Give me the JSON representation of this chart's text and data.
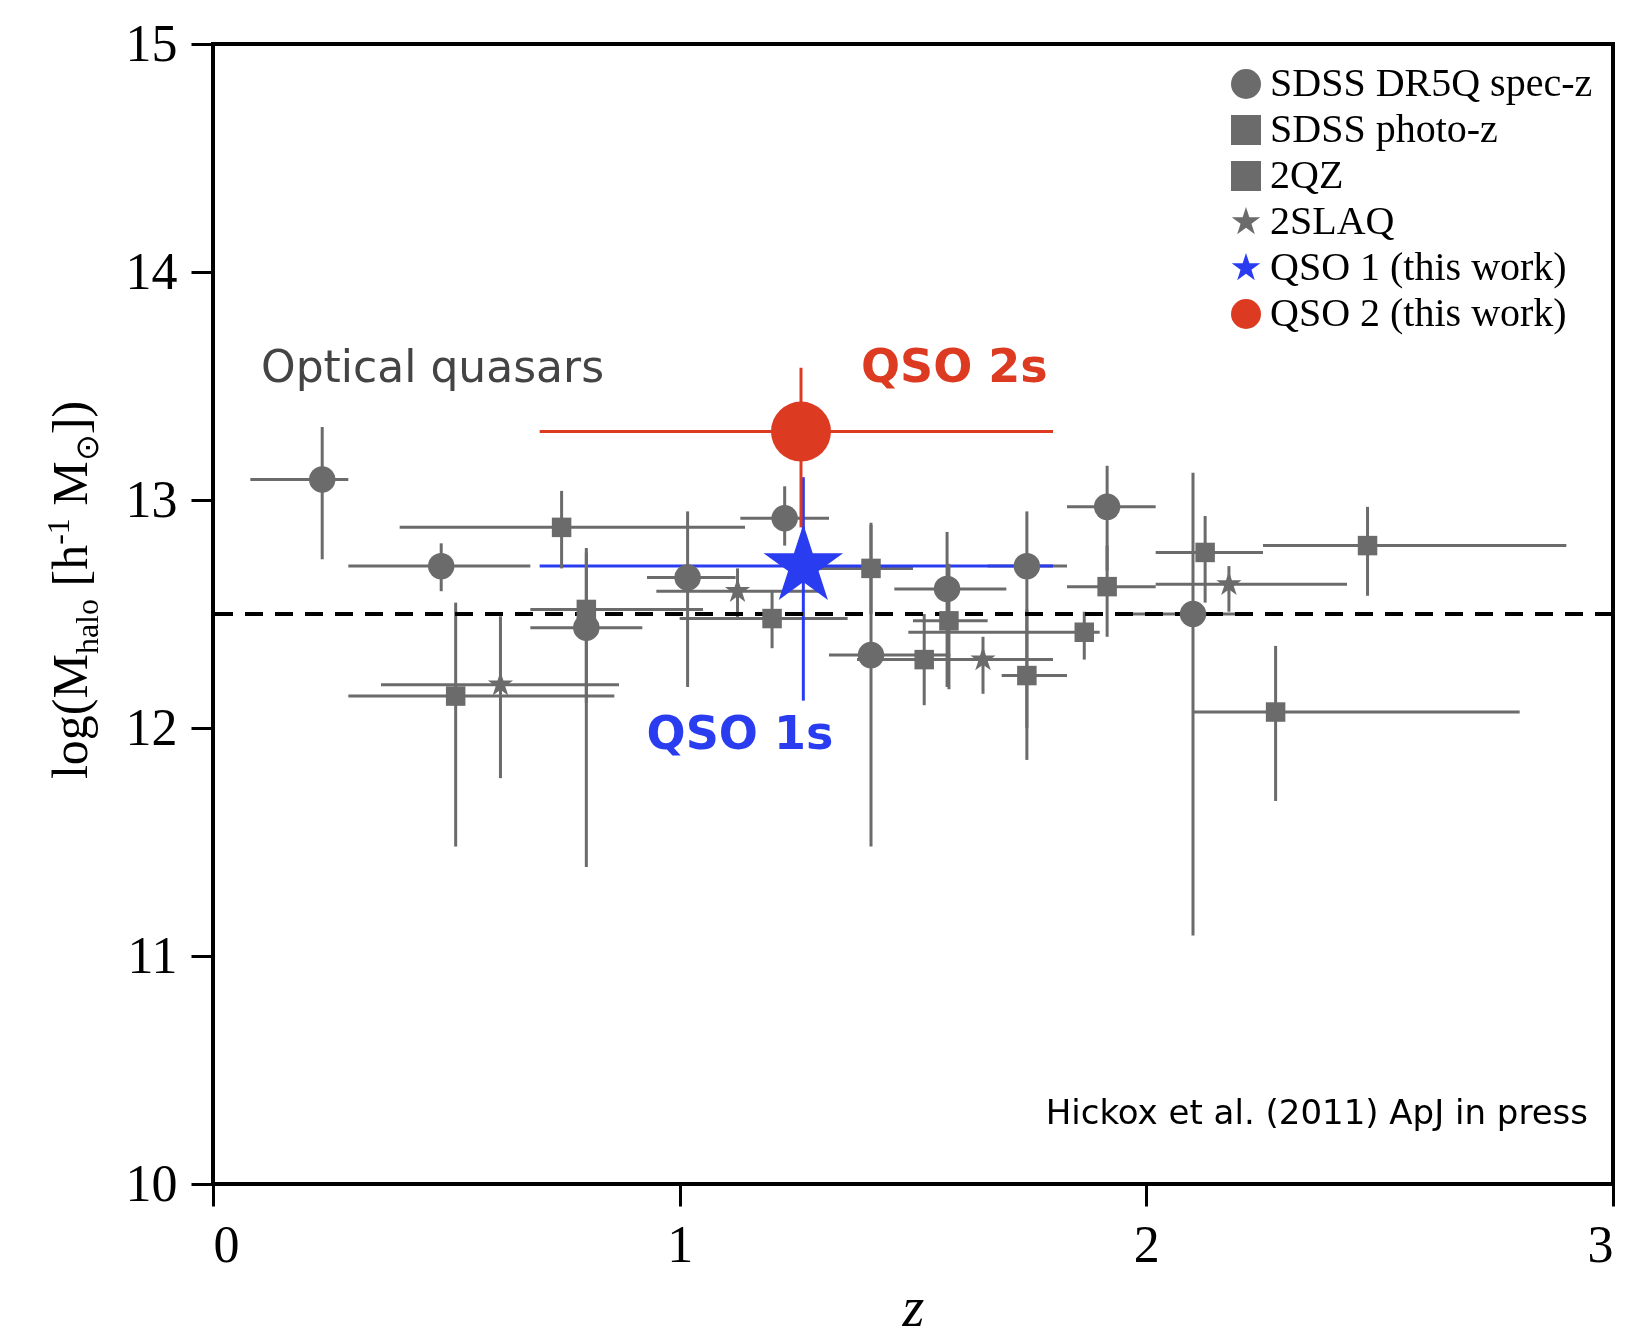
{
  "chart_data": {
    "type": "scatter",
    "xlabel": "z",
    "ylabel": "log(M$_{halo}$ [h$^{-1}$ M$_{⊙}$])",
    "xlim": [
      0,
      3
    ],
    "ylim": [
      10,
      15
    ],
    "xticks": [
      0,
      1,
      2,
      3
    ],
    "yticks": [
      10,
      11,
      12,
      13,
      14,
      15
    ],
    "grid": false,
    "legend": "top right",
    "series": [
      {
        "name": "SDSS DR5Q spec-z",
        "color": "#6b6b6b",
        "marker": "circle",
        "x": [
          0.234,
          0.489,
          0.8,
          1.017,
          1.225,
          1.41,
          1.573,
          1.744,
          1.916,
          2.1
        ],
        "values": [
          13.09,
          12.71,
          12.44,
          12.66,
          12.92,
          12.32,
          12.61,
          12.71,
          12.97,
          12.5
        ],
        "xerrors": [
          [
            0.08,
            0.29
          ],
          [
            0.29,
            0.68
          ],
          [
            0.68,
            0.92
          ],
          [
            0.93,
            1.12
          ],
          [
            1.13,
            1.32
          ],
          [
            1.32,
            1.58
          ],
          [
            1.46,
            1.7
          ],
          [
            1.66,
            1.83
          ],
          [
            1.83,
            2.02
          ],
          [
            1.96,
            2.2
          ]
        ],
        "errors": [
          [
            12.74,
            13.32
          ],
          [
            12.6,
            12.81
          ],
          [
            11.39,
            12.79
          ],
          [
            12.18,
            12.95
          ],
          [
            12.8,
            13.06
          ],
          [
            11.48,
            12.9
          ],
          [
            12.18,
            12.86
          ],
          [
            11.86,
            12.95
          ],
          [
            12.69,
            13.15
          ],
          [
            11.09,
            13.12
          ]
        ]
      },
      {
        "name": "SDSS photo-z",
        "color": "#6b6b6b",
        "marker": "square",
        "x": [
          0.747,
          1.198,
          1.524,
          1.867,
          2.277
        ],
        "values": [
          12.88,
          12.48,
          12.3,
          12.42,
          12.07
        ],
        "xerrors": [
          [
            0.4,
            1.14
          ],
          [
            1.0,
            1.36
          ],
          [
            1.38,
            1.68
          ],
          [
            1.49,
            1.9
          ],
          [
            2.1,
            2.8
          ]
        ],
        "errors": [
          [
            12.7,
            13.04
          ],
          [
            12.35,
            12.6
          ],
          [
            12.1,
            12.5
          ],
          [
            12.3,
            12.51
          ],
          [
            11.68,
            12.36
          ]
        ]
      },
      {
        "name": "2QZ",
        "color": "#6b6b6b",
        "marker": "square",
        "x": [
          0.52,
          0.8,
          1.41,
          1.577,
          1.744,
          1.916,
          2.126,
          2.474
        ],
        "values": [
          12.14,
          12.52,
          12.7,
          12.47,
          12.23,
          12.62,
          12.77,
          12.8
        ],
        "xerrors": [
          [
            0.29,
            0.86
          ],
          [
            0.68,
            1.05
          ],
          [
            1.3,
            1.5
          ],
          [
            1.5,
            1.66
          ],
          [
            1.69,
            1.83
          ],
          [
            1.83,
            2.02
          ],
          [
            2.02,
            2.25
          ],
          [
            2.25,
            2.9
          ]
        ],
        "errors": [
          [
            11.48,
            12.55
          ],
          [
            12.11,
            12.77
          ],
          [
            12.5,
            12.89
          ],
          [
            12.17,
            12.72
          ],
          [
            12.0,
            12.52
          ],
          [
            12.4,
            12.8
          ],
          [
            12.55,
            12.93
          ],
          [
            12.58,
            12.97
          ]
        ]
      },
      {
        "name": "2SLAQ",
        "color": "#6b6b6b",
        "marker": "star",
        "x": [
          0.616,
          1.124,
          1.65,
          2.177
        ],
        "values": [
          12.19,
          12.6,
          12.3,
          12.63
        ],
        "xerrors": [
          [
            0.36,
            0.87
          ],
          [
            0.95,
            1.3
          ],
          [
            1.5,
            1.8
          ],
          [
            2.02,
            2.43
          ]
        ],
        "errors": [
          [
            11.78,
            12.49
          ],
          [
            12.48,
            12.7
          ],
          [
            12.15,
            12.4
          ],
          [
            12.51,
            12.71
          ]
        ]
      },
      {
        "name": "QSO 1 (this work)",
        "color": "#2a3cf0",
        "marker": "star",
        "x": [
          1.265
        ],
        "values": [
          12.71
        ],
        "xerrors": [
          [
            0.7,
            1.8
          ]
        ],
        "errors": [
          [
            12.12,
            13.1
          ]
        ]
      },
      {
        "name": "QSO 2 (this work)",
        "color": "#dd3a22",
        "marker": "circle",
        "x": [
          1.26
        ],
        "values": [
          13.3
        ],
        "xerrors": [
          [
            0.7,
            1.8
          ]
        ],
        "errors": [
          [
            12.88,
            13.58
          ]
        ]
      }
    ],
    "ref_lines": [
      {
        "axis": "y",
        "value": 12.5,
        "color": "#000000",
        "line_style": "dashed"
      }
    ],
    "annotations": [
      "Optical quasars",
      {
        "text": "QSO 2s",
        "x": 1.26,
        "y": 13.3
      },
      {
        "text": "QSO 1s",
        "x": 1.265,
        "y": 12.12
      },
      "Hickox et al. (2011) ApJ in press"
    ]
  }
}
